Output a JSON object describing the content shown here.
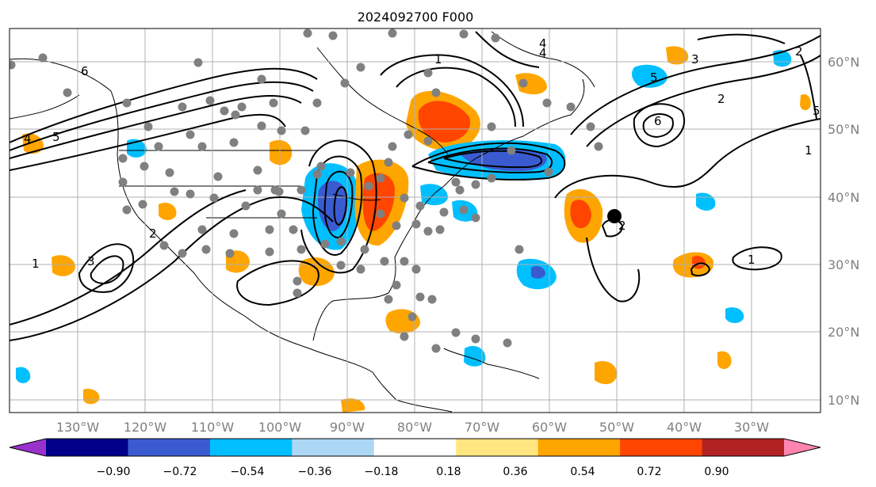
{
  "title": "2024092700 F000",
  "map": {
    "lon_ticks": [
      "130°W",
      "120°W",
      "110°W",
      "100°W",
      "90°W",
      "80°W",
      "70°W",
      "60°W",
      "50°W",
      "40°W",
      "30°W"
    ],
    "lat_ticks": [
      "60°N",
      "50°N",
      "40°N",
      "30°N",
      "20°N",
      "10°N"
    ],
    "grid": true,
    "contour_labels": [
      "6",
      "5",
      "4",
      "3",
      "2",
      "1",
      "1",
      "4",
      "5",
      "6",
      "2",
      "1",
      "3",
      "4",
      "2",
      "5",
      "2",
      "1"
    ],
    "storm_marker": "black-dot",
    "station_marker": "gray-dot"
  },
  "colorbar": {
    "ticks": [
      "−0.90",
      "−0.72",
      "−0.54",
      "−0.36",
      "−0.18",
      "0.18",
      "0.36",
      "0.54",
      "0.72",
      "0.90"
    ],
    "colors": [
      "#9932cc",
      "#00008b",
      "#3a5bd0",
      "#00bfff",
      "#add8f5",
      "#ffffff",
      "#ffe680",
      "#ffa500",
      "#ff4500",
      "#b22222",
      "#ff85b0"
    ]
  }
}
